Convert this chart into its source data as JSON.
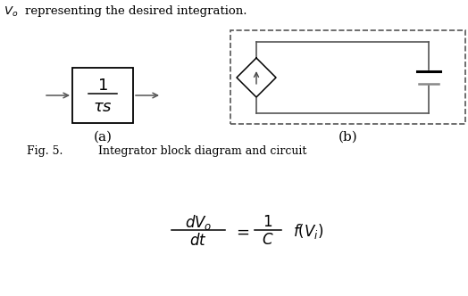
{
  "bg_color": "#ffffff",
  "text_color": "#000000",
  "gray_color": "#888888",
  "title_text": "V_o representing the desired integration.",
  "caption_fig": "Fig. 5.",
  "caption_text": "Integrator block diagram and circuit",
  "label_a": "(a)",
  "label_b": "(b)"
}
